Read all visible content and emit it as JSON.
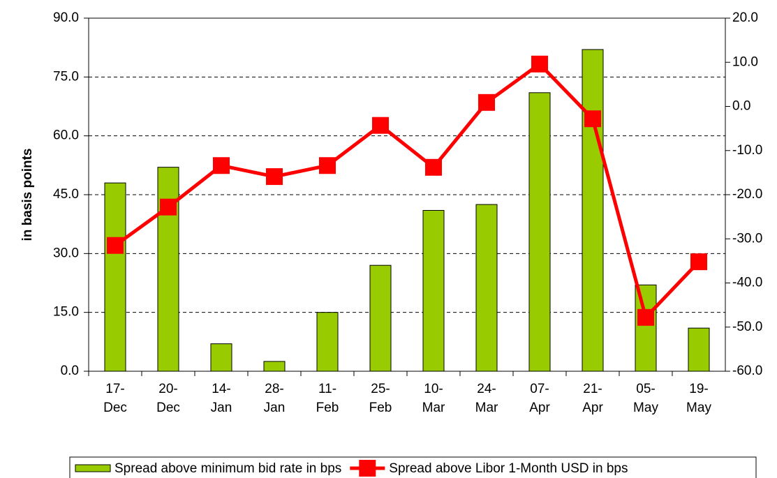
{
  "chart_data": {
    "type": "bar_line",
    "y_label": "in basis points",
    "categories": [
      "17-Dec",
      "20-Dec",
      "14-Jan",
      "28-Jan",
      "11-Feb",
      "25-Feb",
      "10-Mar",
      "24-Mar",
      "07-Apr",
      "21-Apr",
      "05-May",
      "19-May"
    ],
    "series": [
      {
        "name": "Spread above minimum bid rate in bps",
        "type": "bar",
        "color": "#99cc00",
        "axis": "y",
        "values": [
          48,
          52,
          7,
          2.5,
          15,
          27,
          41,
          42.5,
          71,
          82,
          22,
          11
        ]
      },
      {
        "name": "Spread above Libor 1-Month USD in bps",
        "type": "line",
        "color": "#ff0000",
        "axis": "y2",
        "values": [
          -31.5,
          -22.8,
          -13.4,
          -15.9,
          -13.4,
          -4.3,
          -13.8,
          0.9,
          9.6,
          -2.8,
          -47.8,
          -35.2
        ]
      }
    ],
    "ylim": [
      0,
      90
    ],
    "yticks": [
      {
        "value": 0,
        "label": "0.0"
      },
      {
        "value": 15,
        "label": "15.0"
      },
      {
        "value": 30,
        "label": "30.0"
      },
      {
        "value": 45,
        "label": "45.0"
      },
      {
        "value": 60,
        "label": "60.0"
      },
      {
        "value": 75,
        "label": "75.0"
      },
      {
        "value": 90,
        "label": "90.0"
      }
    ],
    "y2lim": [
      -60,
      20
    ],
    "y2ticks": [
      {
        "value": -60,
        "label": "-60.0"
      },
      {
        "value": -50,
        "label": "-50.0"
      },
      {
        "value": -40,
        "label": "-40.0"
      },
      {
        "value": -30,
        "label": "-30.0"
      },
      {
        "value": -20,
        "label": "-20.0"
      },
      {
        "value": -10,
        "label": "-10.0"
      },
      {
        "value": 0,
        "label": "0.0"
      },
      {
        "value": 10,
        "label": "10.0"
      },
      {
        "value": 20,
        "label": "20.0"
      }
    ],
    "grid": true,
    "legend": "bottom"
  }
}
